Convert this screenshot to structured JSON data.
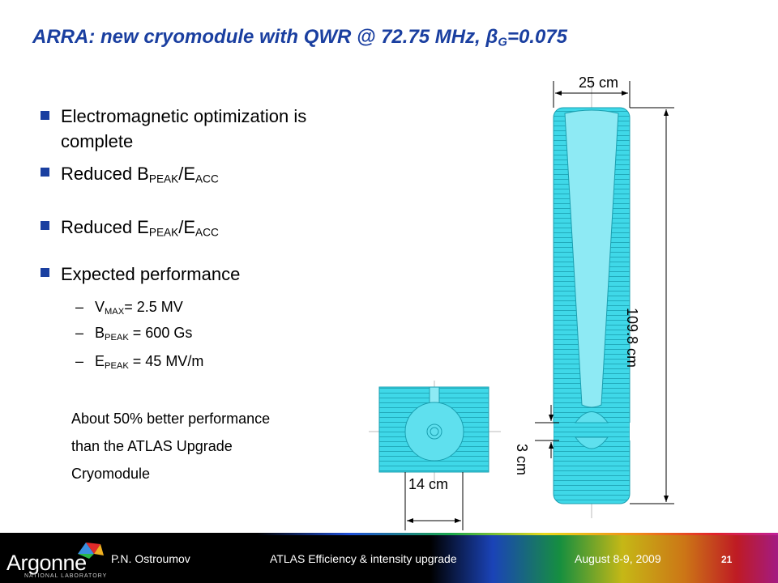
{
  "title": [
    "ARRA: new cryomodule with QWR  @ 72.75 MHz, β",
    "G",
    "=0.075"
  ],
  "bullets": [
    [
      "Electromagnetic optimization is complete"
    ],
    [
      "Reduced B",
      "PEAK",
      "/E",
      "ACC"
    ],
    [
      "Reduced  E",
      "PEAK",
      "/E",
      "ACC"
    ],
    [
      "Expected performance"
    ]
  ],
  "sub_bullets": [
    [
      "V",
      "MAX",
      "= 2.5 MV"
    ],
    [
      "B",
      "PEAK",
      " = 600 Gs"
    ],
    [
      "E",
      "PEAK",
      " = 45 MV/m"
    ]
  ],
  "note": [
    "About 50% better performance",
    "than the ATLAS Upgrade",
    "Cryomodule"
  ],
  "dimensions": {
    "width": "25 cm",
    "height": "109.8 cm",
    "gap": "3 cm",
    "side": "14 cm"
  },
  "footer": {
    "logo": "Argonne",
    "logo_sub": "NATIONAL LABORATORY",
    "author": "P.N. Ostroumov",
    "event": "ATLAS Efficiency & intensity upgrade",
    "date": "August 8-9, 2009",
    "page": "21"
  }
}
